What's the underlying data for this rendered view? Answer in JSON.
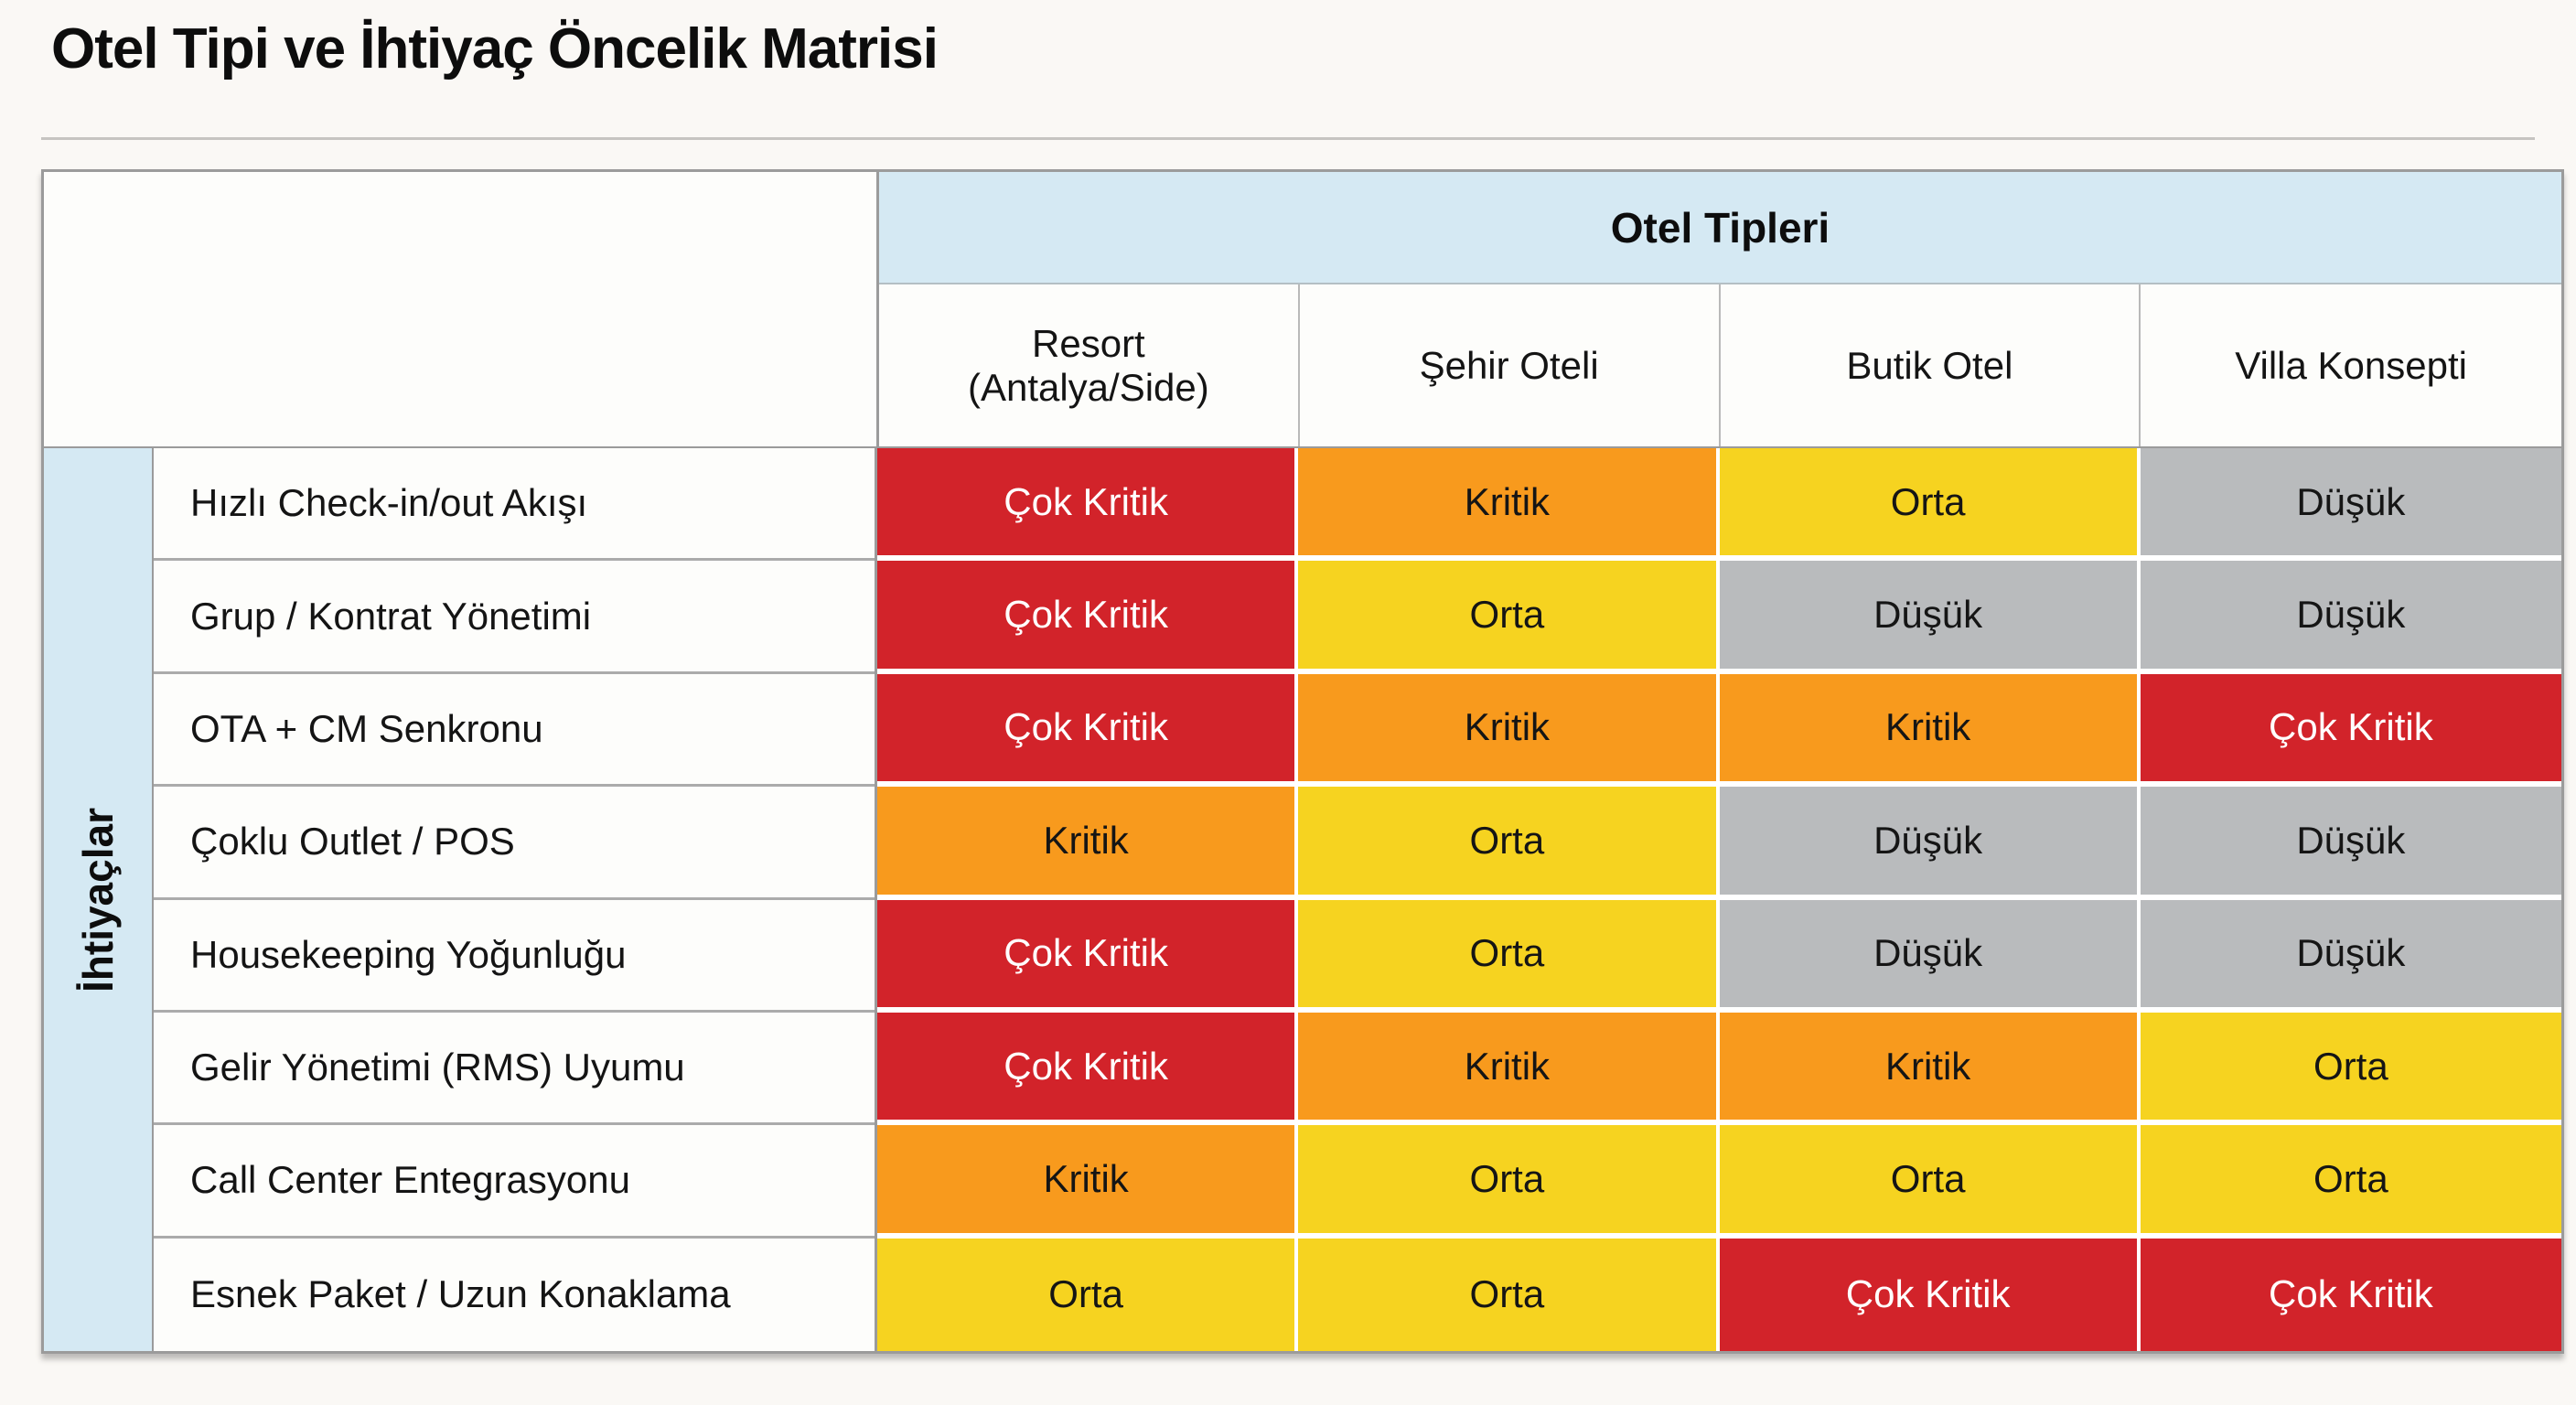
{
  "page": {
    "title": "Otel Tipi ve İhtiyaç Öncelik Matrisi"
  },
  "chart_data": {
    "type": "heatmap",
    "title": "Otel Tipi ve İhtiyaç Öncelik Matrisi",
    "columns_group_label": "Otel Tipleri",
    "rows_group_label": "İhtiyaçlar",
    "columns": [
      "Resort (Antalya/Side)",
      "Şehir Oteli",
      "Butik Otel",
      "Villa Konsepti"
    ],
    "rows": [
      "Hızlı Check-in/out Akışı",
      "Grup / Kontrat Yönetimi",
      "OTA + CM Senkronu",
      "Çoklu Outlet / POS",
      "Housekeeping Yoğunluğu",
      "Gelir Yönetimi (RMS) Uyumu",
      "Call Center Entegrasyonu",
      "Esnek Paket / Uzun Konaklama"
    ],
    "values": [
      [
        "Çok Kritik",
        "Kritik",
        "Orta",
        "Düşük"
      ],
      [
        "Çok Kritik",
        "Orta",
        "Düşük",
        "Düşük"
      ],
      [
        "Çok Kritik",
        "Kritik",
        "Kritik",
        "Çok Kritik"
      ],
      [
        "Kritik",
        "Orta",
        "Düşük",
        "Düşük"
      ],
      [
        "Çok Kritik",
        "Orta",
        "Düşük",
        "Düşük"
      ],
      [
        "Çok Kritik",
        "Kritik",
        "Kritik",
        "Orta"
      ],
      [
        "Kritik",
        "Orta",
        "Orta",
        "Orta"
      ],
      [
        "Orta",
        "Orta",
        "Çok Kritik",
        "Çok Kritik"
      ]
    ],
    "level_order": [
      "Çok Kritik",
      "Kritik",
      "Orta",
      "Düşük"
    ],
    "levels": {
      "Çok Kritik": {
        "bg": "#d2232a",
        "text": "#ffffff"
      },
      "Kritik": {
        "bg": "#f89a1d",
        "text": "#151515"
      },
      "Orta": {
        "bg": "#f6d320",
        "text": "#151515"
      },
      "Düşük": {
        "bg": "#b9bbbd",
        "text": "#151515"
      }
    },
    "colors": {
      "header_band_bg": "#d5e9f3",
      "table_border": "#9b9b9b",
      "page_bg": "#faf8f5"
    }
  }
}
